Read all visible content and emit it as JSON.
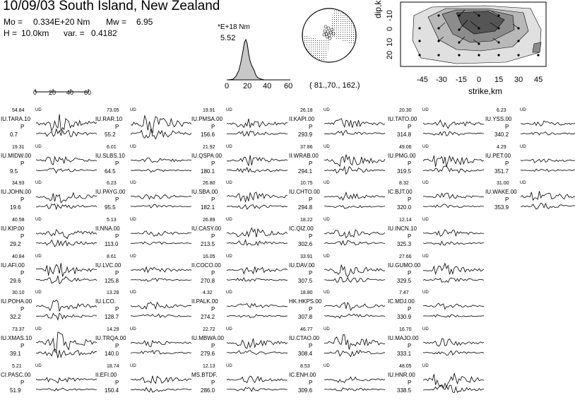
{
  "header": {
    "title": "10/09/03 South Island, New Zealand",
    "mo_label": "Mo =",
    "mo_value": "0.334E+20 Nm",
    "mw_label": "Mw =",
    "mw_value": "6.95",
    "h_label": "H =",
    "h_value": "10.0km",
    "var_label": "var. =",
    "var_value": "0.4182"
  },
  "stf": {
    "unit": "*E+18 Nm",
    "max": "5.52",
    "ticks": [
      "0",
      "20",
      "40",
      "60"
    ]
  },
  "mechanism": {
    "params": "( 81.,70., 162.)"
  },
  "time_scale": {
    "ticks": [
      "0",
      "20",
      "40",
      "60"
    ]
  },
  "slip_map": {
    "xlabel": "strike,km",
    "ylabel": "dip,km",
    "xticks": [
      "-45",
      "-30",
      "-15",
      "0",
      "15",
      "30",
      "45"
    ],
    "yticks": [
      "-10",
      "0",
      "10",
      "20"
    ]
  },
  "stations": [
    {
      "amp": "54.84",
      "ud": "UD",
      "name": "IU.TARA.10",
      "phase": "P",
      "az": "0.7"
    },
    {
      "amp": "19.31",
      "ud": "UD",
      "name": "IU.MIDW.00",
      "phase": "P",
      "az": "9.5"
    },
    {
      "amp": "34.93",
      "ud": "UD",
      "name": "IU.JOHN.00",
      "phase": "P",
      "az": "19.6"
    },
    {
      "amp": "40.58",
      "ud": "UD",
      "name": "IU.KIP.00",
      "phase": "P",
      "az": "29.2"
    },
    {
      "amp": "40.84",
      "ud": "UD",
      "name": "IU.AFI.00",
      "phase": "P",
      "az": "29.6"
    },
    {
      "amp": "30.10",
      "ud": "UD",
      "name": "IU.POHA.00",
      "phase": "P",
      "az": "32.2"
    },
    {
      "amp": "73.37",
      "ud": "UD",
      "name": "IU.XMAS.10",
      "phase": "P",
      "az": "39.1"
    },
    {
      "amp": "5.21",
      "ud": "UD",
      "name": "CI.PASC.00",
      "phase": "P",
      "az": "51.9"
    },
    {
      "amp": "73.05",
      "ud": "UD",
      "name": "IU.RAR.10",
      "phase": "P",
      "az": "55.2"
    },
    {
      "amp": "6.01",
      "ud": "UD",
      "name": "IU.SLBS.10",
      "phase": "P",
      "az": "64.5"
    },
    {
      "amp": "6.23",
      "ud": "UD",
      "name": "IU.PAYG.00",
      "phase": "P",
      "az": "95.5"
    },
    {
      "amp": "5.13",
      "ud": "UD",
      "name": "II.NNA.00",
      "phase": "P",
      "az": "113.0"
    },
    {
      "amp": "8.61",
      "ud": "UD",
      "name": "IU.LVC.00",
      "phase": "P",
      "az": "125.8"
    },
    {
      "amp": "13.28",
      "ud": "UD",
      "name": "IU.LCO.",
      "phase": "P",
      "az": "128.7"
    },
    {
      "amp": "14.29",
      "ud": "UD",
      "name": "IU.TRQA.00",
      "phase": "P",
      "az": "140.0"
    },
    {
      "amp": "18.74",
      "ud": "UD",
      "name": "II.EFI.00",
      "phase": "P",
      "az": "150.4"
    },
    {
      "amp": "19.91",
      "ud": "UD",
      "name": "IU.PMSA.00",
      "phase": "P",
      "az": "156.6"
    },
    {
      "amp": "21.92",
      "ud": "UD",
      "name": "IU.QSPA.00",
      "phase": "P",
      "az": "180.1"
    },
    {
      "amp": "26.80",
      "ud": "UD",
      "name": "IU.SBA.00",
      "phase": "P",
      "az": "182.1"
    },
    {
      "amp": "26.89",
      "ud": "UD",
      "name": "IU.CASY.00",
      "phase": "P",
      "az": "213.5"
    },
    {
      "amp": "16.05",
      "ud": "UD",
      "name": "II.COCO.00",
      "phase": "P",
      "az": "270.8"
    },
    {
      "amp": "4.32",
      "ud": "UD",
      "name": "II.PALK.00",
      "phase": "P",
      "az": "274.2"
    },
    {
      "amp": "22.72",
      "ud": "UD",
      "name": "IU.MBWA.00",
      "phase": "P",
      "az": "279.6"
    },
    {
      "amp": "12.13",
      "ud": "UD",
      "name": "MS.BTDF.",
      "phase": "P",
      "az": "286.0"
    },
    {
      "amp": "26.18",
      "ud": "UD",
      "name": "II.KAPI.00",
      "phase": "P",
      "az": "293.9"
    },
    {
      "amp": "37.86",
      "ud": "UD",
      "name": "II.WRAB.00",
      "phase": "P",
      "az": "294.1"
    },
    {
      "amp": "10.75",
      "ud": "UD",
      "name": "IU.CHTO.00",
      "phase": "P",
      "az": "294.8"
    },
    {
      "amp": "18.22",
      "ud": "UD",
      "name": "IC.QIZ.00",
      "phase": "P",
      "az": "302.6"
    },
    {
      "amp": "33.91",
      "ud": "UD",
      "name": "IU.DAV.00",
      "phase": "P",
      "az": "307.5"
    },
    {
      "amp": "18.80",
      "ud": "UD",
      "name": "HK.HKPS.00",
      "phase": "P",
      "az": "307.8"
    },
    {
      "amp": "46.77",
      "ud": "UD",
      "name": "IU.CTAO.00",
      "phase": "P",
      "az": "308.4"
    },
    {
      "amp": "8.53",
      "ud": "UD",
      "name": "IC.ENH.00",
      "phase": "P",
      "az": "309.6"
    },
    {
      "amp": "20.30",
      "ud": "UD",
      "name": "IU.TATO.00",
      "phase": "P",
      "az": "314.8"
    },
    {
      "amp": "49.06",
      "ud": "UD",
      "name": "IU.PMG.00",
      "phase": "P",
      "az": "319.5"
    },
    {
      "amp": "8.32",
      "ud": "UD",
      "name": "IC.BJT.00",
      "phase": "P",
      "az": "320.0"
    },
    {
      "amp": "12.14",
      "ud": "UD",
      "name": "IU.INCN.10",
      "phase": "P",
      "az": "325.3"
    },
    {
      "amp": "27.66",
      "ud": "UD",
      "name": "IU.GUMO.00",
      "phase": "P",
      "az": "329.5"
    },
    {
      "amp": "7.47",
      "ud": "UD",
      "name": "IC.MDJ.00",
      "phase": "P",
      "az": "330.9"
    },
    {
      "amp": "16.70",
      "ud": "UD",
      "name": "IU.MAJO.00",
      "phase": "P",
      "az": "333.1"
    },
    {
      "amp": "48.05",
      "ud": "UD",
      "name": "IU.HNR.00",
      "phase": "P",
      "az": "338.5"
    },
    {
      "amp": "6.23",
      "ud": "UD",
      "name": "IU.YSS.00",
      "phase": "P",
      "az": "340.2"
    },
    {
      "amp": "4.29",
      "ud": "UD",
      "name": "IU.PET.00",
      "phase": "P",
      "az": "351.7"
    },
    {
      "amp": "31.00",
      "ud": "UD",
      "name": "IU.WAKE.00",
      "phase": "P",
      "az": "353.9"
    }
  ]
}
